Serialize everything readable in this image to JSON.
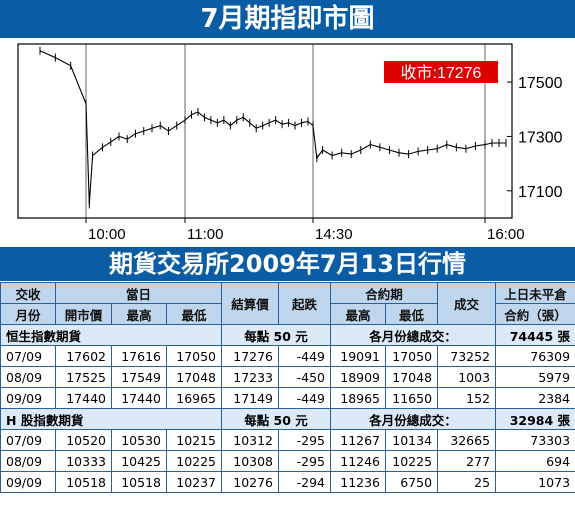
{
  "chart_data": {
    "type": "candlestick-line",
    "title": "7月期指即市圖",
    "close_label": "收市:17276",
    "x_ticks": [
      "10:00",
      "11:00",
      "14:30",
      "16:00"
    ],
    "y_ticks": [
      17500,
      17300,
      17100
    ],
    "ylim": [
      17000,
      17640
    ],
    "x_range": [
      "09:45",
      "16:15"
    ],
    "series": [
      {
        "values": [
          [
            "09:45",
            17615
          ],
          [
            "09:50",
            17590
          ],
          [
            "09:55",
            17560
          ],
          [
            "10:00",
            17420
          ],
          [
            "10:02",
            17050
          ],
          [
            "10:04",
            17230
          ],
          [
            "10:10",
            17260
          ],
          [
            "10:15",
            17280
          ],
          [
            "10:20",
            17300
          ],
          [
            "10:25",
            17290
          ],
          [
            "10:30",
            17310
          ],
          [
            "10:35",
            17320
          ],
          [
            "10:40",
            17330
          ],
          [
            "10:45",
            17340
          ],
          [
            "10:50",
            17320
          ],
          [
            "10:55",
            17340
          ],
          [
            "11:00",
            17360
          ],
          [
            "11:05",
            17380
          ],
          [
            "11:10",
            17390
          ],
          [
            "11:15",
            17370
          ],
          [
            "11:20",
            17360
          ],
          [
            "11:25",
            17350
          ],
          [
            "11:30",
            17360
          ],
          [
            "11:35",
            17340
          ],
          [
            "11:40",
            17360
          ],
          [
            "11:45",
            17370
          ],
          [
            "11:50",
            17350
          ],
          [
            "11:55",
            17330
          ],
          [
            "12:00",
            17340
          ],
          [
            "12:05",
            17350
          ],
          [
            "12:10",
            17360
          ],
          [
            "12:15",
            17345
          ],
          [
            "12:20",
            17350
          ],
          [
            "12:25",
            17340
          ],
          [
            "12:30",
            17350
          ],
          [
            "12:35",
            17355
          ],
          [
            "14:30",
            17340
          ],
          [
            "14:32",
            17220
          ],
          [
            "14:35",
            17250
          ],
          [
            "14:40",
            17230
          ],
          [
            "14:45",
            17240
          ],
          [
            "14:50",
            17235
          ],
          [
            "14:55",
            17250
          ],
          [
            "15:00",
            17270
          ],
          [
            "15:05",
            17260
          ],
          [
            "15:10",
            17250
          ],
          [
            "15:15",
            17240
          ],
          [
            "15:20",
            17235
          ],
          [
            "15:25",
            17245
          ],
          [
            "15:30",
            17250
          ],
          [
            "15:35",
            17255
          ],
          [
            "15:40",
            17270
          ],
          [
            "15:45",
            17260
          ],
          [
            "15:50",
            17255
          ],
          [
            "15:55",
            17265
          ],
          [
            "16:00",
            17270
          ],
          [
            "16:05",
            17276
          ],
          [
            "16:10",
            17276
          ],
          [
            "16:15",
            17276
          ]
        ]
      }
    ]
  },
  "table": {
    "title": "期貨交易所2009年7月13日行情",
    "headers": {
      "month": "交收\n月份",
      "today": "當日",
      "open": "開市價",
      "high": "最高",
      "low": "最低",
      "settle": "結算價",
      "change": "起跌",
      "contract": "合約期",
      "chigh": "最高",
      "clow": "最低",
      "volume": "成交",
      "oi": "上日未平倉\n合約（張）"
    },
    "sections": [
      {
        "name": "恒生指數期貨",
        "unit": "每點 50 元",
        "total_label": "各月份總成交：",
        "total": "74445 張",
        "rows": [
          [
            "07/09",
            "17602",
            "17616",
            "17050",
            "17276",
            "-449",
            "19091",
            "17050",
            "73252",
            "76309"
          ],
          [
            "08/09",
            "17525",
            "17549",
            "17048",
            "17233",
            "-450",
            "18909",
            "17048",
            "1003",
            "5979"
          ],
          [
            "09/09",
            "17440",
            "17440",
            "16965",
            "17149",
            "-449",
            "18965",
            "11650",
            "152",
            "2384"
          ]
        ]
      },
      {
        "name": "H 股指數期貨",
        "unit": "每點 50 元",
        "total_label": "各月份總成交：",
        "total": "32984 張",
        "rows": [
          [
            "07/09",
            "10520",
            "10530",
            "10215",
            "10312",
            "-295",
            "11267",
            "10134",
            "32665",
            "73303"
          ],
          [
            "08/09",
            "10333",
            "10425",
            "10225",
            "10308",
            "-295",
            "11246",
            "10225",
            "277",
            "694"
          ],
          [
            "09/09",
            "10518",
            "10518",
            "10237",
            "10276",
            "-294",
            "11236",
            "6750",
            "25",
            "1073"
          ]
        ]
      }
    ]
  }
}
